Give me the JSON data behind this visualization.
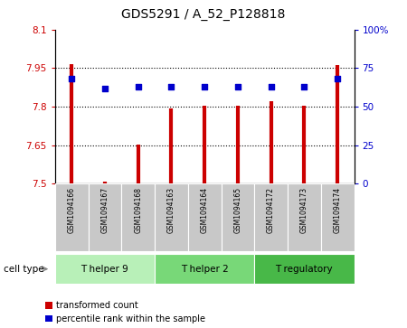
{
  "title": "GDS5291 / A_52_P128818",
  "samples": [
    "GSM1094166",
    "GSM1094167",
    "GSM1094168",
    "GSM1094163",
    "GSM1094164",
    "GSM1094165",
    "GSM1094172",
    "GSM1094173",
    "GSM1094174"
  ],
  "red_values": [
    7.965,
    7.507,
    7.652,
    7.793,
    7.803,
    7.804,
    7.822,
    7.804,
    7.963
  ],
  "blue_values": [
    68,
    62,
    63,
    63,
    63,
    63,
    63,
    63,
    68
  ],
  "ylim_left": [
    7.5,
    8.1
  ],
  "ylim_right": [
    0,
    100
  ],
  "yticks_left": [
    7.5,
    7.65,
    7.8,
    7.95,
    8.1
  ],
  "ytick_labels_left": [
    "7.5",
    "7.65",
    "7.8",
    "7.95",
    "8.1"
  ],
  "yticks_right": [
    0,
    25,
    50,
    75,
    100
  ],
  "ytick_labels_right": [
    "0",
    "25",
    "50",
    "75",
    "100%"
  ],
  "cell_groups": [
    {
      "label": "T helper 9",
      "indices": [
        0,
        1,
        2
      ],
      "color": "#b8f0b8"
    },
    {
      "label": "T helper 2",
      "indices": [
        3,
        4,
        5
      ],
      "color": "#78d878"
    },
    {
      "label": "T regulatory",
      "indices": [
        6,
        7,
        8
      ],
      "color": "#48b848"
    }
  ],
  "red_color": "#cc0000",
  "blue_color": "#0000cc",
  "grid_color": "#000000",
  "plot_bg": "#ffffff",
  "tick_area_bg": "#c8c8c8",
  "cell_type_label": "cell type",
  "legend_red": "transformed count",
  "legend_blue": "percentile rank within the sample"
}
